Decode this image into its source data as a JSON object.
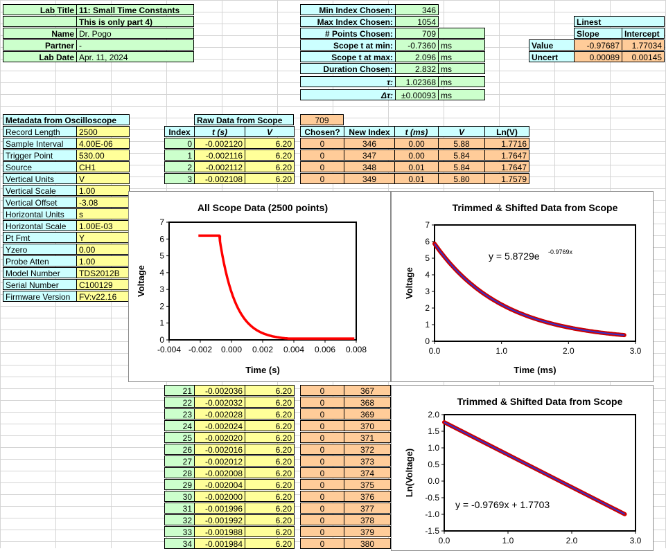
{
  "lab": {
    "title_label": "Lab Title",
    "title": "11: Small Time Constants",
    "subtitle": "This is only part 4)",
    "name_label": "Name",
    "name": "Dr. Pogo",
    "partner_label": "Partner",
    "partner": "-",
    "date_label": "Lab Date",
    "date": "Apr. 11, 2024"
  },
  "summary": {
    "rows": [
      {
        "label": "Min Index Chosen:",
        "value": "346",
        "unit": ""
      },
      {
        "label": "Max Index Chosen:",
        "value": "1054",
        "unit": ""
      },
      {
        "label": "# Points Chosen:",
        "value": "709",
        "unit": ""
      },
      {
        "label": "Scope t at min:",
        "value": "-0.7360",
        "unit": "ms"
      },
      {
        "label": "Scope t at max:",
        "value": "2.096",
        "unit": "ms"
      },
      {
        "label": "Duration Chosen:",
        "value": "2.832",
        "unit": "ms"
      },
      {
        "label": "τ:",
        "value": "1.02368",
        "unit": "ms"
      },
      {
        "label": "Δτ:",
        "value": "±0.00093",
        "unit": "ms"
      }
    ]
  },
  "linest": {
    "title": "Linest",
    "col_slope": "Slope",
    "col_intercept": "Intercept",
    "value_label": "Value",
    "value_slope": "-0.97687",
    "value_intercept": "1.77034",
    "uncert_label": "Uncert",
    "uncert_slope": "0.00089",
    "uncert_intercept": "0.00145"
  },
  "metadata": {
    "title": "Metadata from Oscilloscope",
    "rows": [
      {
        "k": "Record Length",
        "v": "2500"
      },
      {
        "k": "Sample Interval",
        "v": "4.00E-06"
      },
      {
        "k": "Trigger Point",
        "v": "530.00"
      },
      {
        "k": "Source",
        "v": "CH1"
      },
      {
        "k": "Vertical Units",
        "v": "V"
      },
      {
        "k": "Vertical Scale",
        "v": "1.00"
      },
      {
        "k": "Vertical Offset",
        "v": "-3.08"
      },
      {
        "k": "Horizontal Units",
        "v": "s"
      },
      {
        "k": "Horizontal Scale",
        "v": "1.00E-03"
      },
      {
        "k": "Pt Fmt",
        "v": "Y"
      },
      {
        "k": "Yzero",
        "v": "0.00"
      },
      {
        "k": "Probe Atten",
        "v": "1.00"
      },
      {
        "k": "Model Number",
        "v": "TDS2012B"
      },
      {
        "k": "Serial Number",
        "v": "C100129"
      },
      {
        "k": "Firmware Version",
        "v": "FV:v22.16"
      }
    ]
  },
  "raw": {
    "title": "Raw Data from Scope",
    "count": "709",
    "headers": {
      "index": "Index",
      "t": "t (s)",
      "v": "V",
      "chosen": "Chosen?",
      "new_index": "New Index",
      "tms": "t (ms)",
      "v2": "V",
      "lnv": "Ln(V)"
    },
    "top_rows": [
      {
        "i": "0",
        "t": "-0.002120",
        "v": "6.20",
        "c": "0",
        "ni": "346",
        "tms": "0.00",
        "v2": "5.88",
        "ln": "1.7716"
      },
      {
        "i": "1",
        "t": "-0.002116",
        "v": "6.20",
        "c": "0",
        "ni": "347",
        "tms": "0.00",
        "v2": "5.84",
        "ln": "1.7647"
      },
      {
        "i": "2",
        "t": "-0.002112",
        "v": "6.20",
        "c": "0",
        "ni": "348",
        "tms": "0.01",
        "v2": "5.84",
        "ln": "1.7647"
      },
      {
        "i": "3",
        "t": "-0.002108",
        "v": "6.20",
        "c": "0",
        "ni": "349",
        "tms": "0.01",
        "v2": "5.80",
        "ln": "1.7579"
      }
    ],
    "bottom_rows": [
      {
        "i": "21",
        "t": "-0.002036",
        "v": "6.20",
        "c": "0",
        "ni": "367"
      },
      {
        "i": "22",
        "t": "-0.002032",
        "v": "6.20",
        "c": "0",
        "ni": "368"
      },
      {
        "i": "23",
        "t": "-0.002028",
        "v": "6.20",
        "c": "0",
        "ni": "369"
      },
      {
        "i": "24",
        "t": "-0.002024",
        "v": "6.20",
        "c": "0",
        "ni": "370"
      },
      {
        "i": "25",
        "t": "-0.002020",
        "v": "6.20",
        "c": "0",
        "ni": "371"
      },
      {
        "i": "26",
        "t": "-0.002016",
        "v": "6.20",
        "c": "0",
        "ni": "372"
      },
      {
        "i": "27",
        "t": "-0.002012",
        "v": "6.20",
        "c": "0",
        "ni": "373"
      },
      {
        "i": "28",
        "t": "-0.002008",
        "v": "6.20",
        "c": "0",
        "ni": "374"
      },
      {
        "i": "29",
        "t": "-0.002004",
        "v": "6.20",
        "c": "0",
        "ni": "375"
      },
      {
        "i": "30",
        "t": "-0.002000",
        "v": "6.20",
        "c": "0",
        "ni": "376"
      },
      {
        "i": "31",
        "t": "-0.001996",
        "v": "6.20",
        "c": "0",
        "ni": "377"
      },
      {
        "i": "32",
        "t": "-0.001992",
        "v": "6.20",
        "c": "0",
        "ni": "378"
      },
      {
        "i": "33",
        "t": "-0.001988",
        "v": "6.20",
        "c": "0",
        "ni": "379"
      },
      {
        "i": "34",
        "t": "-0.001984",
        "v": "6.20",
        "c": "0",
        "ni": "380"
      }
    ]
  },
  "colors": {
    "green": "#ccffcc",
    "yellow": "#ffff99",
    "cyan": "#ccffff",
    "orange": "#ffcc99",
    "red": "#ff0000",
    "blue": "#3333cc",
    "plot_red": "#cc0000"
  },
  "chart_data": [
    {
      "type": "scatter",
      "title": "All Scope Data (2500 points)",
      "xlabel": "Time (s)",
      "ylabel": "Voltage",
      "xlim": [
        -0.004,
        0.008
      ],
      "ylim": [
        0,
        7
      ],
      "xticks": [
        "-0.004",
        "-0.002",
        "0.000",
        "0.002",
        "0.004",
        "0.006",
        "0.008"
      ],
      "yticks": [
        "0",
        "1",
        "2",
        "3",
        "4",
        "5",
        "6",
        "7"
      ],
      "series": [
        {
          "name": "scope",
          "model": "V = 6.20 for t < -0.00074 s; V = 5.87 exp(-(t+0.00074)/0.00102) afterwards",
          "t_start": -0.00212,
          "t_end": 0.00788,
          "plateau": 6.2,
          "step_t": -0.00074,
          "amplitude": 5.87,
          "tau": 0.00102
        }
      ]
    },
    {
      "type": "scatter",
      "title": "Trimmed & Shifted Data from Scope",
      "xlabel": "Time (ms)",
      "ylabel": "Voltage",
      "xlim": [
        0,
        3
      ],
      "ylim": [
        0,
        7
      ],
      "xticks": [
        "0.0",
        "1.0",
        "2.0",
        "3.0"
      ],
      "yticks": [
        "0",
        "1",
        "2",
        "3",
        "4",
        "5",
        "6",
        "7"
      ],
      "annotation": "y = 5.8729e",
      "annotation_exp": "-0.9769x",
      "series": [
        {
          "name": "data",
          "t_start": 0,
          "t_end": 2.832,
          "amplitude": 5.8729,
          "rate": -0.9769
        },
        {
          "name": "fit",
          "amplitude": 5.8729,
          "rate": -0.9769
        }
      ]
    },
    {
      "type": "scatter",
      "title": "Trimmed & Shifted Data from Scope",
      "xlabel": "",
      "ylabel": "Ln(Voltage)",
      "xlim": [
        0,
        3
      ],
      "ylim": [
        -1.5,
        2.0
      ],
      "xticks": [
        "0.0",
        "1.0",
        "2.0",
        "3.0"
      ],
      "yticks": [
        "-1.5",
        "-1.0",
        "-0.5",
        "0.0",
        "0.5",
        "1.0",
        "1.5",
        "2.0"
      ],
      "annotation": "y = -0.9769x + 1.7703",
      "series": [
        {
          "name": "data",
          "t_start": 0,
          "t_end": 2.832,
          "slope": -0.9769,
          "intercept": 1.7703
        },
        {
          "name": "fit",
          "slope": -0.9769,
          "intercept": 1.7703
        }
      ]
    }
  ]
}
